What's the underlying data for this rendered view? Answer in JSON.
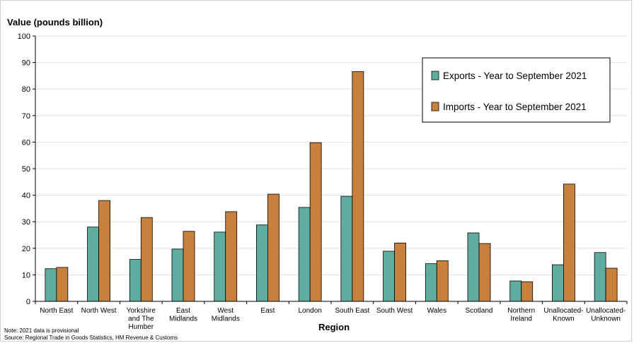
{
  "chart_data": {
    "type": "bar",
    "ylabel": "Value (pounds billion)",
    "xlabel": "Region",
    "ylim": [
      0,
      100
    ],
    "yticks": [
      0,
      10,
      20,
      30,
      40,
      50,
      60,
      70,
      80,
      90,
      100
    ],
    "grid": true,
    "legend_position": "top-right",
    "categories": [
      "North East",
      "North West",
      "Yorkshire and The Humber",
      "East Midlands",
      "West Midlands",
      "East",
      "London",
      "South East",
      "South West",
      "Wales",
      "Scotland",
      "Northern Ireland",
      "Unallocated-Known",
      "Unallocated-Unknown"
    ],
    "category_lines": [
      [
        "North East"
      ],
      [
        "North West"
      ],
      [
        "Yorkshire",
        "and The",
        "Humber"
      ],
      [
        "East",
        "Midlands"
      ],
      [
        "West",
        "Midlands"
      ],
      [
        "East"
      ],
      [
        "London"
      ],
      [
        "South East"
      ],
      [
        "South West"
      ],
      [
        "Wales"
      ],
      [
        "Scotland"
      ],
      [
        "Northern",
        "Ireland"
      ],
      [
        "Unallocated-",
        "Known"
      ],
      [
        "Unallocated-",
        "Unknown"
      ]
    ],
    "series": [
      {
        "name": "Exports - Year to September 2021",
        "color": "#5fada0",
        "values": [
          12.3,
          28.0,
          15.8,
          19.7,
          26.1,
          28.8,
          35.4,
          39.6,
          18.9,
          14.2,
          25.8,
          7.7,
          13.8,
          18.4
        ]
      },
      {
        "name": "Imports - Year to September 2021",
        "color": "#c8813c",
        "values": [
          12.8,
          38.0,
          31.6,
          26.4,
          33.8,
          40.4,
          59.8,
          86.6,
          22.0,
          15.3,
          21.8,
          7.4,
          44.2,
          12.5
        ]
      }
    ],
    "notes": [
      "Note: 2021 data is provisional",
      "Source: Regional Trade in Goods Statistics, HM Revenue & Customs"
    ]
  }
}
